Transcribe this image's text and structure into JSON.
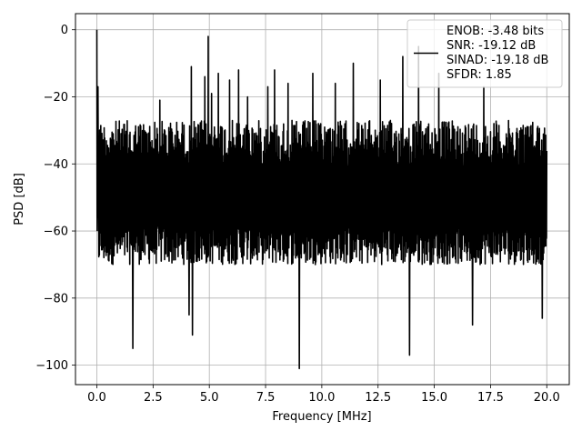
{
  "chart_data": {
    "type": "line",
    "xlabel": "Frequency [MHz]",
    "ylabel": "PSD [dB]",
    "xlim": [
      -0.95,
      21.0
    ],
    "ylim": [
      -105.8,
      4.8
    ],
    "xticks": [
      0.0,
      2.5,
      5.0,
      7.5,
      10.0,
      12.5,
      15.0,
      17.5,
      20.0
    ],
    "xtick_labels": [
      "0.0",
      "2.5",
      "5.0",
      "7.5",
      "10.0",
      "12.5",
      "15.0",
      "17.5",
      "20.0"
    ],
    "yticks": [
      0,
      -20,
      -40,
      -60,
      -80,
      -100
    ],
    "ytick_labels": [
      "0",
      "−20",
      "−40",
      "−60",
      "−80",
      "−100"
    ],
    "grid": true,
    "legend_position": "upper right",
    "line_color": "#000000",
    "x_range": [
      0.0,
      20.0
    ],
    "noise_floor_db": [
      -70,
      -27
    ],
    "peaks": [
      {
        "x": 0.0,
        "y": 0.0
      },
      {
        "x": 0.05,
        "y": -17
      },
      {
        "x": 1.6,
        "y": -95
      },
      {
        "x": 2.8,
        "y": -21
      },
      {
        "x": 4.2,
        "y": -11
      },
      {
        "x": 4.1,
        "y": -85
      },
      {
        "x": 4.25,
        "y": -91
      },
      {
        "x": 4.8,
        "y": -14
      },
      {
        "x": 4.95,
        "y": -2
      },
      {
        "x": 5.1,
        "y": -19
      },
      {
        "x": 5.4,
        "y": -13
      },
      {
        "x": 5.9,
        "y": -15
      },
      {
        "x": 6.3,
        "y": -12
      },
      {
        "x": 6.7,
        "y": -20
      },
      {
        "x": 7.6,
        "y": -17
      },
      {
        "x": 7.9,
        "y": -12
      },
      {
        "x": 8.5,
        "y": -16
      },
      {
        "x": 9.0,
        "y": -101
      },
      {
        "x": 9.6,
        "y": -13
      },
      {
        "x": 10.6,
        "y": -16
      },
      {
        "x": 11.4,
        "y": -10
      },
      {
        "x": 12.6,
        "y": -15
      },
      {
        "x": 13.6,
        "y": -8
      },
      {
        "x": 13.9,
        "y": -97
      },
      {
        "x": 14.3,
        "y": -5
      },
      {
        "x": 15.2,
        "y": -13
      },
      {
        "x": 16.7,
        "y": -88
      },
      {
        "x": 17.2,
        "y": -17
      },
      {
        "x": 19.8,
        "y": -86
      }
    ],
    "legend": {
      "lines": [
        "ENOB: -3.48 bits",
        "SNR: -19.12 dB",
        "SINAD: -19.18 dB",
        "SFDR: 1.85"
      ]
    }
  }
}
